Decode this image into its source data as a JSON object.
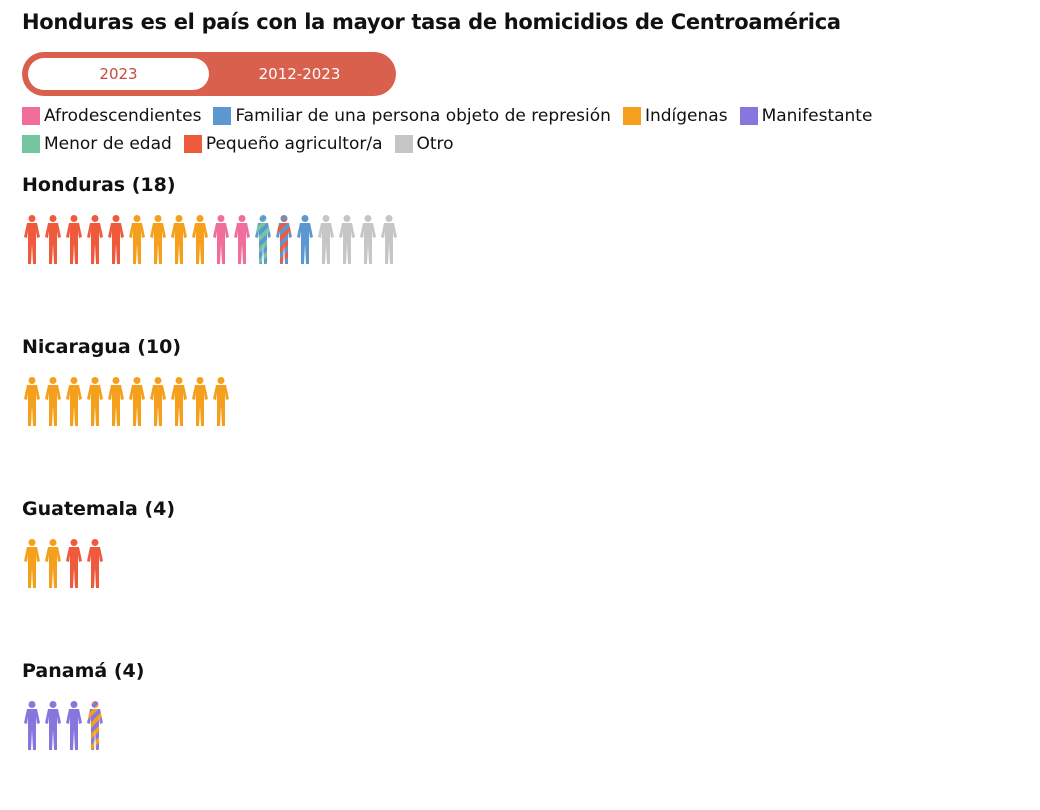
{
  "title": "Honduras es el país con la mayor tasa de homicidios de Centroamérica",
  "toggle": {
    "options": [
      "2023",
      "2012-2023"
    ],
    "selected": "2023"
  },
  "legend": [
    {
      "label": "Afrodescendientes",
      "color": "#f06e9c"
    },
    {
      "label": "Familiar de una persona objeto de represión",
      "color": "#5b97d1"
    },
    {
      "label": "Indígenas",
      "color": "#f5a01d"
    },
    {
      "label": "Manifestante",
      "color": "#8577dd"
    },
    {
      "label": "Menor de edad",
      "color": "#76c5a2"
    },
    {
      "label": "Pequeño agricultor/a",
      "color": "#ef5a3c"
    },
    {
      "label": "Otro",
      "color": "#c6c6c6"
    }
  ],
  "countries": [
    {
      "name": "Honduras (18)",
      "figures": [
        [
          "#ef5a3c"
        ],
        [
          "#ef5a3c"
        ],
        [
          "#ef5a3c"
        ],
        [
          "#ef5a3c"
        ],
        [
          "#ef5a3c"
        ],
        [
          "#f5a01d"
        ],
        [
          "#f5a01d"
        ],
        [
          "#f5a01d"
        ],
        [
          "#f5a01d"
        ],
        [
          "#f06e9c"
        ],
        [
          "#f06e9c"
        ],
        [
          "#5b97d1",
          "#76c5a2"
        ],
        [
          "#5b97d1",
          "#ef5a3c"
        ],
        [
          "#5b97d1"
        ],
        [
          "#c6c6c6"
        ],
        [
          "#c6c6c6"
        ],
        [
          "#c6c6c6"
        ],
        [
          "#c6c6c6"
        ]
      ]
    },
    {
      "name": "Nicaragua (10)",
      "figures": [
        [
          "#f5a01d"
        ],
        [
          "#f5a01d"
        ],
        [
          "#f5a01d"
        ],
        [
          "#f5a01d"
        ],
        [
          "#f5a01d"
        ],
        [
          "#f5a01d"
        ],
        [
          "#f5a01d"
        ],
        [
          "#f5a01d"
        ],
        [
          "#f5a01d"
        ],
        [
          "#f5a01d"
        ]
      ]
    },
    {
      "name": "Guatemala (4)",
      "figures": [
        [
          "#f5a01d"
        ],
        [
          "#f5a01d"
        ],
        [
          "#ef5a3c"
        ],
        [
          "#ef5a3c"
        ]
      ]
    },
    {
      "name": "Panamá (4)",
      "figures": [
        [
          "#8577dd"
        ],
        [
          "#8577dd"
        ],
        [
          "#8577dd"
        ],
        [
          "#8577dd",
          "#f5a01d"
        ]
      ]
    }
  ]
}
